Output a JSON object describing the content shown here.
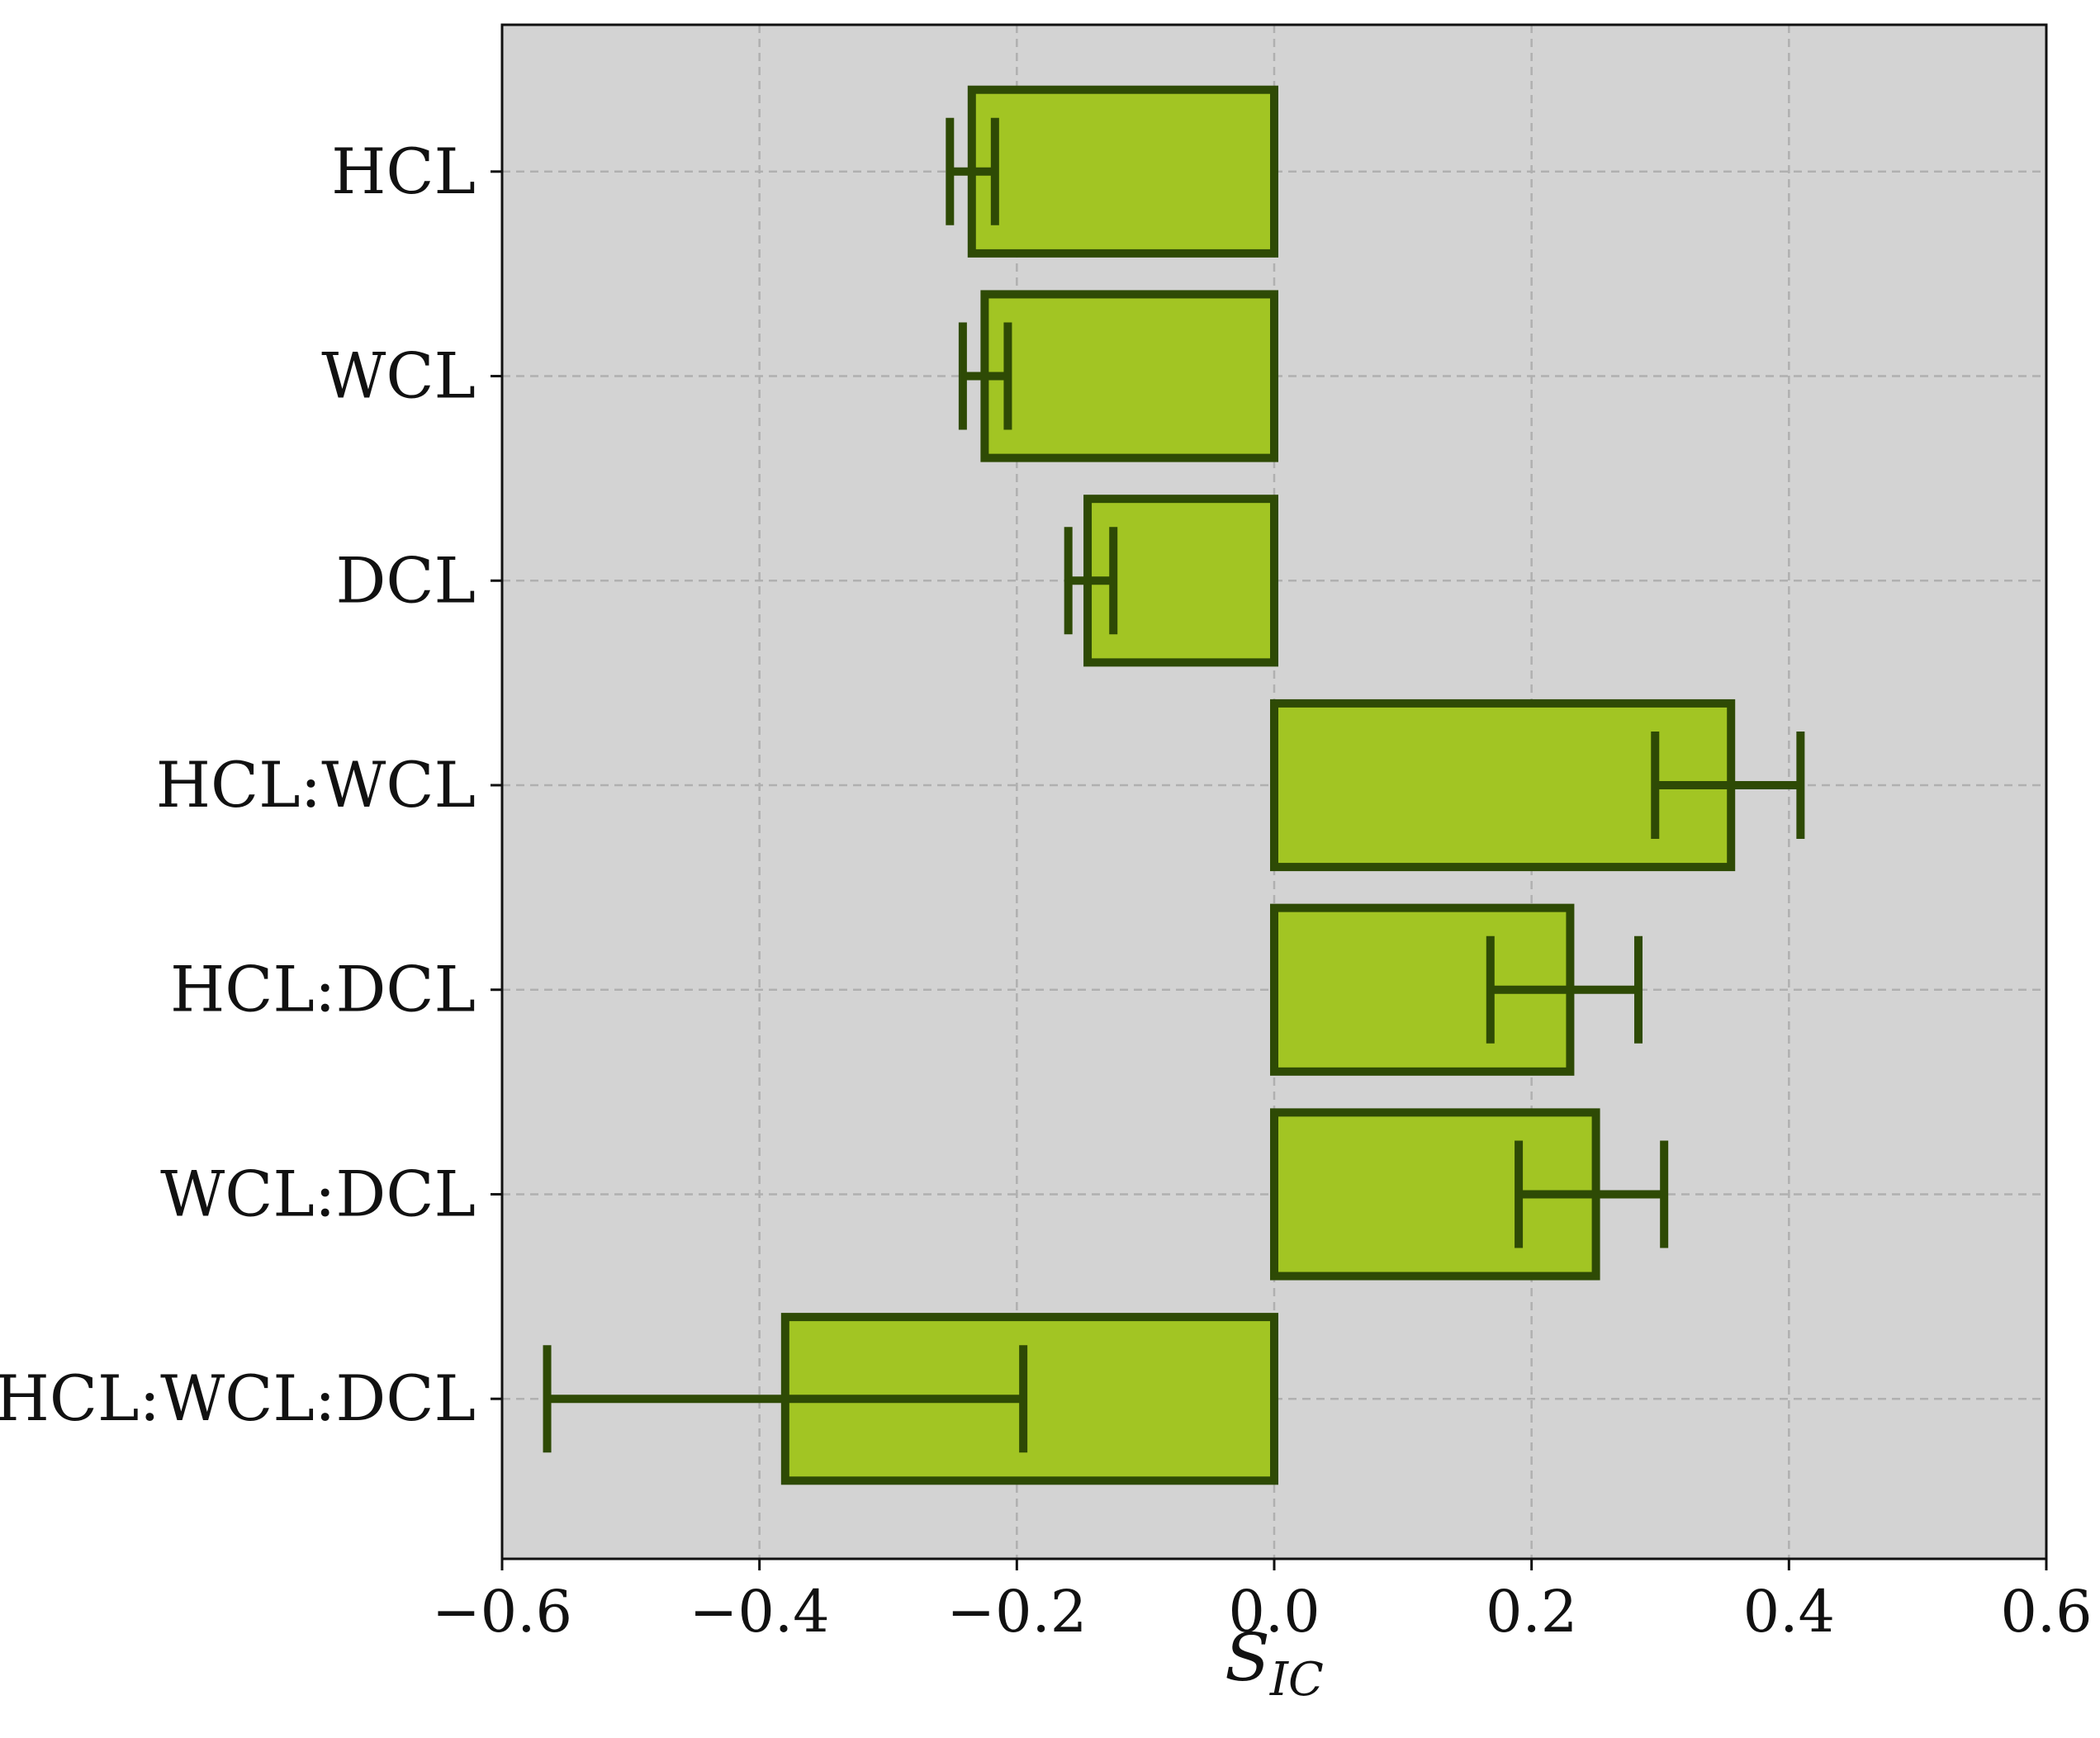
{
  "chart_data": {
    "type": "bar",
    "orientation": "horizontal",
    "title": "",
    "xlabel": {
      "main": "S",
      "subscript": "IC"
    },
    "ylabel": "",
    "categories": [
      "HCL",
      "WCL",
      "DCL",
      "HCL:WCL",
      "HCL:DCL",
      "WCL:DCL",
      "HCL:WCL:DCL"
    ],
    "values": [
      -0.235,
      -0.225,
      -0.145,
      0.355,
      0.23,
      0.25,
      -0.38
    ],
    "error_low": [
      -0.252,
      -0.242,
      -0.16,
      0.296,
      0.168,
      0.19,
      -0.565
    ],
    "error_high": [
      -0.217,
      -0.207,
      -0.125,
      0.409,
      0.283,
      0.303,
      -0.195
    ],
    "xlim": [
      -0.6,
      0.6
    ],
    "xticks": [
      -0.6,
      -0.4,
      -0.2,
      0.0,
      0.2,
      0.4,
      0.6
    ],
    "xtick_labels": [
      "−0.6",
      "−0.4",
      "−0.2",
      "0.0",
      "0.2",
      "0.4",
      "0.6"
    ],
    "grid": true,
    "legend": "none",
    "colors": {
      "plot_background": "#d3d3d3",
      "bar_fill": "#a2c523",
      "bar_edge": "#2e4a05",
      "error_bar": "#2e4a05",
      "grid": "#b0b0b0",
      "axes": "#111111"
    }
  }
}
